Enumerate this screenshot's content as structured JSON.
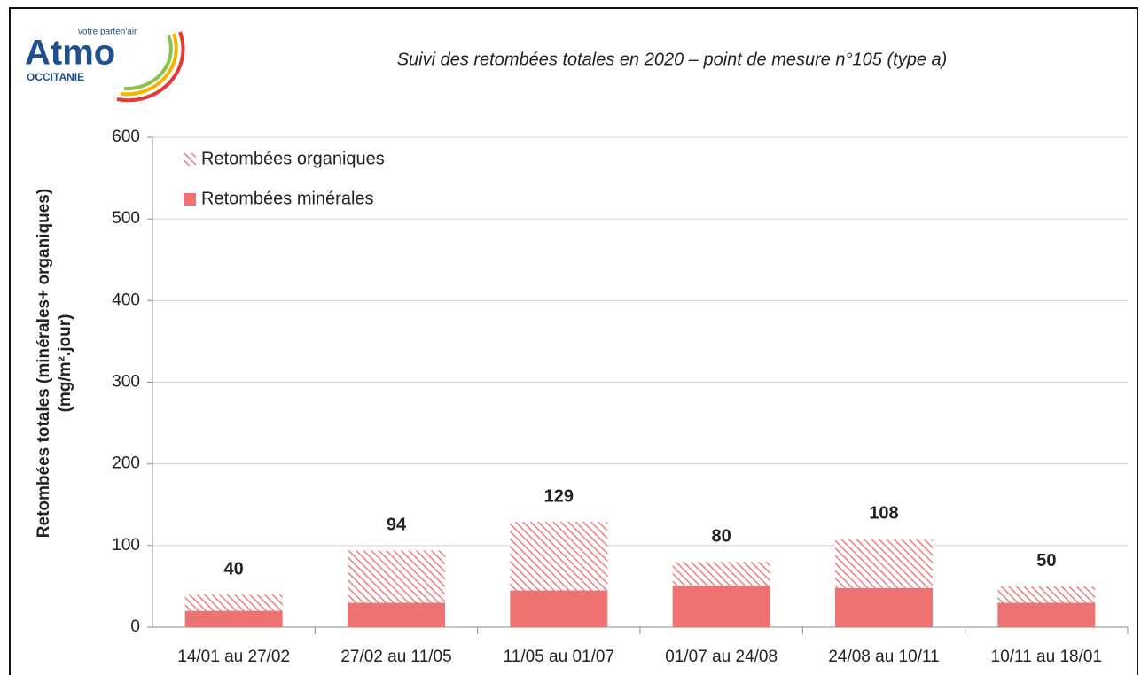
{
  "logo": {
    "brand": "Atmo",
    "tagline": "votre parten'air",
    "region": "OCCITANIE"
  },
  "chart_data": {
    "type": "stacked_bar",
    "title": "Suivi des retombées totales en 2020 – point de mesure n°105 (type a)",
    "y_label": [
      "Retombées totales (minérales+ organiques)",
      "(mg/m².jour)"
    ],
    "categories": [
      "14/01 au 27/02",
      "27/02 au 11/05",
      "11/05 au 01/07",
      "01/07 au 24/08",
      "24/08 au 10/11",
      "10/11 au 18/01"
    ],
    "series": [
      {
        "name": "Retombées minérales",
        "color": "#ef7272",
        "pattern": "solid",
        "values": [
          20,
          30,
          45,
          51,
          48,
          30
        ]
      },
      {
        "name": "Retombées organiques",
        "color": "#ea6464",
        "pattern": "hatch",
        "values": [
          20,
          64,
          84,
          29,
          60,
          20
        ]
      }
    ],
    "totals": [
      40,
      94,
      129,
      80,
      108,
      50
    ],
    "ylim": [
      0,
      600
    ],
    "yticks": [
      0,
      100,
      200,
      300,
      400,
      500,
      600
    ],
    "grid": true,
    "legend": "top-left"
  }
}
